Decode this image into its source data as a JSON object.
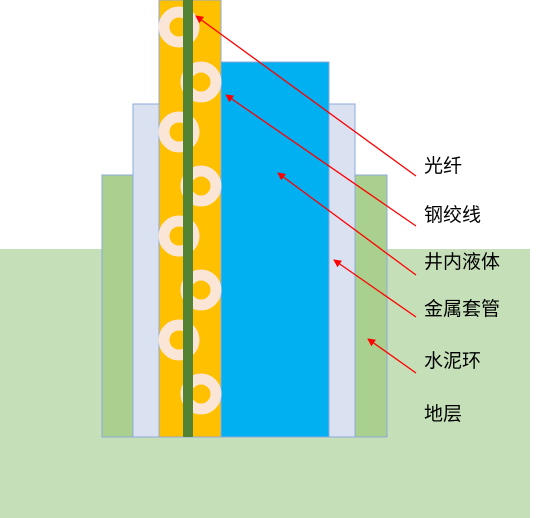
{
  "labels": {
    "optical_fiber": "光纤",
    "steel_strand": "钢绞线",
    "well_fluid": "井内液体",
    "metal_casing": "金属套管",
    "cement_ring": "水泥环",
    "stratum": "地层"
  },
  "colors": {
    "stratum": "#c5dfb8",
    "cement": "#a9d08e",
    "casing": "#dae1f1",
    "cable_body": "#ffc000",
    "fiber": "#548235",
    "strand": "#fbe5d6",
    "fluid": "#00b0f0",
    "outline": "#8faadc",
    "arrow": "#ff0000"
  }
}
